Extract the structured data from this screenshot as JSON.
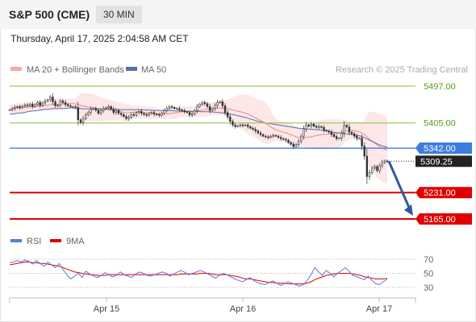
{
  "header": {
    "title": "S&P 500 (CME)",
    "interval": "30 MIN",
    "datetime": "Thursday, April 17, 2025 2:04:58 AM CET"
  },
  "legend": {
    "ma20": "MA 20 + Bollinger Bands",
    "ma50": "MA 50",
    "credit": "Research © 2025 Trading Central",
    "rsi": "RSI",
    "ma9": "9MA"
  },
  "colors": {
    "bollinger": "#f7a9a9",
    "ma20": "#e88a8a",
    "ma50": "#5a6fb0",
    "candle": "#333333",
    "support_green": "#9ccc65",
    "resistance_blue": "#3d7de0",
    "target_red": "#e00000",
    "arrow": "#2c5aa0",
    "rsi": "#5b7bd5",
    "rsi_ma": "#e00000"
  },
  "chart_data": [
    {
      "type": "candlestick",
      "title": "S&P 500 (CME) 30 MIN",
      "x_ticks": [
        "Apr 15",
        "Apr 16",
        "Apr 17"
      ],
      "ylim": [
        5140,
        5520
      ],
      "levels": [
        {
          "label": "5497.00",
          "value": 5497,
          "kind": "resistance"
        },
        {
          "label": "5405.00",
          "value": 5405,
          "kind": "resistance"
        },
        {
          "label": "5342.00",
          "value": 5342,
          "kind": "pivot"
        },
        {
          "label": "5309.25",
          "value": 5309.25,
          "kind": "last"
        },
        {
          "label": "5231.00",
          "value": 5231,
          "kind": "support"
        },
        {
          "label": "5165.00",
          "value": 5165,
          "kind": "support"
        }
      ],
      "close_series": [
        5438,
        5441,
        5444,
        5446,
        5443,
        5447,
        5450,
        5448,
        5452,
        5446,
        5451,
        5456,
        5449,
        5455,
        5460,
        5463,
        5470,
        5458,
        5448,
        5449,
        5460,
        5456,
        5451,
        5448,
        5446,
        5446,
        5444,
        5413,
        5406,
        5416,
        5426,
        5431,
        5439,
        5441,
        5437,
        5429,
        5436,
        5441,
        5443,
        5446,
        5440,
        5431,
        5436,
        5429,
        5426,
        5421,
        5416,
        5419,
        5426,
        5424,
        5431,
        5434,
        5429,
        5426,
        5424,
        5429,
        5431,
        5427,
        5426,
        5424,
        5430,
        5436,
        5441,
        5446,
        5444,
        5441,
        5441,
        5438,
        5436,
        5433,
        5431,
        5425,
        5428,
        5436,
        5446,
        5452,
        5456,
        5453,
        5446,
        5436,
        5441,
        5449,
        5456,
        5458,
        5448,
        5431,
        5420,
        5409,
        5400,
        5396,
        5398,
        5400,
        5399,
        5400,
        5396,
        5392,
        5389,
        5385,
        5380,
        5376,
        5372,
        5370,
        5369,
        5372,
        5374,
        5372,
        5369,
        5366,
        5364,
        5362,
        5356,
        5352,
        5346,
        5351,
        5359,
        5372,
        5390,
        5400,
        5397,
        5402,
        5397,
        5394,
        5396,
        5394,
        5387,
        5385,
        5382,
        5376,
        5371,
        5366,
        5367,
        5380,
        5399,
        5395,
        5382,
        5378,
        5372,
        5367,
        5367,
        5347,
        5322,
        5271,
        5281,
        5292,
        5296,
        5286,
        5298,
        5306,
        5310,
        5309
      ],
      "ma50_series": [
        5427,
        5427,
        5428,
        5429,
        5430,
        5430,
        5431,
        5433,
        5434,
        5435,
        5435,
        5436,
        5437,
        5438,
        5439,
        5439,
        5440,
        5441,
        5441,
        5441,
        5441,
        5441,
        5441,
        5442,
        5443,
        5442,
        5441,
        5441,
        5441,
        5440,
        5440,
        5440,
        5440,
        5440,
        5440,
        5440,
        5440,
        5440,
        5440,
        5440,
        5439,
        5439,
        5439,
        5438,
        5438,
        5438,
        5438,
        5438,
        5438,
        5438,
        5438,
        5438,
        5438,
        5437,
        5437,
        5437,
        5437,
        5436,
        5436,
        5436,
        5436,
        5436,
        5436,
        5436,
        5435,
        5435,
        5435,
        5435,
        5434,
        5434,
        5434,
        5434,
        5434,
        5434,
        5434,
        5433,
        5433,
        5433,
        5433,
        5433,
        5432,
        5432,
        5431,
        5431,
        5430,
        5429,
        5428,
        5427,
        5426,
        5425,
        5423,
        5422,
        5420,
        5419,
        5417,
        5415,
        5413,
        5411,
        5409,
        5408,
        5406,
        5405,
        5404,
        5403,
        5402,
        5401,
        5400,
        5399,
        5398,
        5397,
        5396,
        5395,
        5394,
        5393,
        5392,
        5391,
        5391,
        5390,
        5390,
        5389,
        5389,
        5388,
        5388,
        5387,
        5386,
        5385,
        5384,
        5383,
        5382,
        5381,
        5380,
        5379,
        5378,
        5378,
        5377,
        5376,
        5375,
        5374,
        5373,
        5371,
        5368,
        5365,
        5362,
        5359,
        5356,
        5353,
        5350,
        5348,
        5346,
        5344
      ],
      "annotation": "projected move toward 5165.00"
    },
    {
      "type": "line",
      "title": "RSI",
      "ylim": [
        20,
        80
      ],
      "y_ticks": [
        "70",
        "50",
        "30"
      ],
      "series": [
        {
          "name": "RSI",
          "values": [
            65,
            66,
            68,
            66,
            69,
            67,
            63,
            68,
            64,
            60,
            66,
            62,
            58,
            64,
            55,
            48,
            42,
            46,
            50,
            44,
            53,
            49,
            46,
            44,
            47,
            51,
            48,
            45,
            47,
            52,
            48,
            46,
            44,
            49,
            52,
            50,
            47,
            46,
            48,
            50,
            52,
            50,
            46,
            49,
            52,
            54,
            51,
            48,
            50,
            52,
            54,
            52,
            49,
            46,
            43,
            47,
            50,
            48,
            45,
            42,
            40,
            38,
            41,
            44,
            40,
            37,
            35,
            34,
            37,
            39,
            36,
            33,
            35,
            38,
            36,
            34,
            32,
            34,
            40,
            48,
            58,
            52,
            47,
            54,
            50,
            45,
            50,
            54,
            58,
            53,
            47,
            45,
            43,
            41,
            46,
            40,
            35,
            34,
            38,
            42
          ]
        },
        {
          "name": "9MA",
          "values": [
            62,
            63,
            64,
            65,
            66,
            66,
            65,
            65,
            64,
            64,
            63,
            62,
            61,
            60,
            58,
            56,
            54,
            52,
            51,
            50,
            49,
            48,
            48,
            47,
            47,
            47,
            48,
            48,
            48,
            48,
            48,
            48,
            48,
            48,
            48,
            48,
            48,
            48,
            48,
            48,
            48,
            48,
            48,
            48,
            48,
            49,
            49,
            49,
            49,
            49,
            50,
            50,
            50,
            49,
            48,
            48,
            48,
            48,
            47,
            46,
            45,
            43,
            42,
            42,
            41,
            40,
            39,
            38,
            37,
            37,
            36,
            36,
            36,
            35,
            35,
            35,
            35,
            35,
            36,
            38,
            41,
            43,
            45,
            47,
            48,
            49,
            50,
            50,
            50,
            50,
            49,
            48,
            47,
            45,
            44,
            43,
            42,
            42,
            42,
            43
          ]
        }
      ]
    }
  ]
}
